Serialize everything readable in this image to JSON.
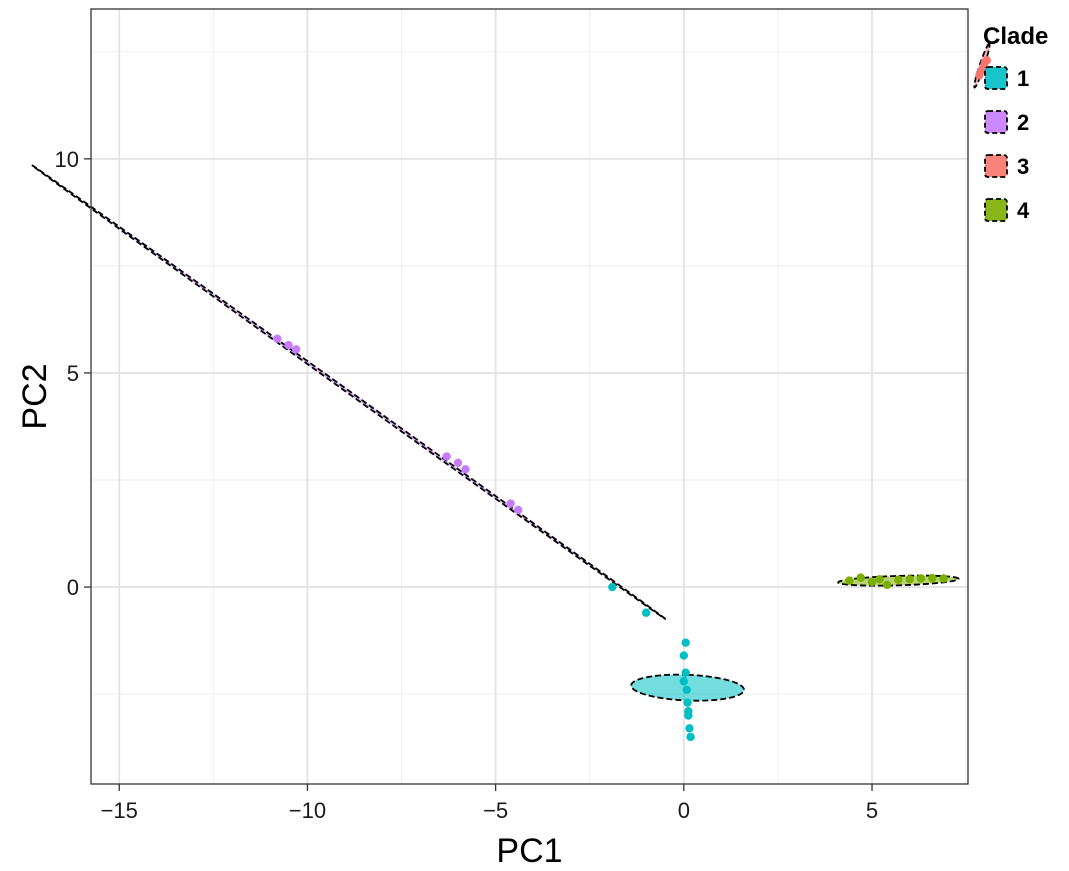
{
  "chart_data": {
    "type": "scatter",
    "title": "",
    "xlabel": "PC1",
    "ylabel": "PC2",
    "xlim": [
      -15.75,
      7.55
    ],
    "ylim": [
      -4.6,
      13.5
    ],
    "x_ticks": [
      -15,
      -10,
      -5,
      0,
      5
    ],
    "x_tick_labels": [
      "−15",
      "−10",
      "−5",
      "0",
      "5"
    ],
    "y_ticks": [
      0,
      5,
      10
    ],
    "y_tick_labels": [
      "0",
      "5",
      "10"
    ],
    "grid": true,
    "legend": {
      "title": "Clade",
      "placement": "right"
    },
    "series": [
      {
        "name": "1",
        "color": "#00BFC4",
        "points": [
          [
            -1.9,
            0.0
          ],
          [
            -1.0,
            -0.6
          ],
          [
            0.0,
            -1.6
          ],
          [
            0.05,
            -2.0
          ],
          [
            0.08,
            -2.4
          ],
          [
            0.1,
            -2.7
          ],
          [
            0.12,
            -3.0
          ],
          [
            0.15,
            -3.3
          ],
          [
            0.05,
            -1.3
          ],
          [
            0.0,
            -2.2
          ],
          [
            0.12,
            -2.9
          ],
          [
            0.18,
            -3.5
          ]
        ],
        "ellipse": {
          "cx": 0.1,
          "cy": -2.35,
          "rx": 0.3,
          "ry": 1.5,
          "angle": 88
        }
      },
      {
        "name": "2",
        "color": "#C77CFF",
        "points": [
          [
            -10.8,
            5.8
          ],
          [
            -10.5,
            5.65
          ],
          [
            -10.3,
            5.55
          ],
          [
            -6.3,
            3.05
          ],
          [
            -6.0,
            2.9
          ],
          [
            -5.8,
            2.75
          ],
          [
            -4.6,
            1.95
          ],
          [
            -4.4,
            1.8
          ]
        ],
        "ellipse": {
          "cx": -8.9,
          "cy": 4.55,
          "rx": 9.95,
          "ry": 0.03,
          "angle": -32.2
        }
      },
      {
        "name": "3",
        "color": "#F8766D",
        "points": [
          [
            7.85,
            11.95
          ],
          [
            7.9,
            12.05
          ],
          [
            7.95,
            12.15
          ],
          [
            8.0,
            12.25
          ],
          [
            8.05,
            12.3
          ]
        ],
        "ellipse": {
          "cx": 7.92,
          "cy": 12.18,
          "rx": 0.55,
          "ry": 0.06,
          "angle": 69
        }
      },
      {
        "name": "4",
        "color": "#7CAE00",
        "points": [
          [
            4.7,
            0.22
          ],
          [
            5.2,
            0.18
          ],
          [
            5.4,
            0.05
          ],
          [
            5.7,
            0.17
          ],
          [
            6.0,
            0.18
          ],
          [
            6.3,
            0.2
          ],
          [
            6.6,
            0.21
          ],
          [
            4.4,
            0.15
          ],
          [
            5.0,
            0.12
          ],
          [
            6.9,
            0.2
          ]
        ],
        "ellipse": {
          "cx": 5.7,
          "cy": 0.15,
          "rx": 1.6,
          "ry": 0.11,
          "angle": 1.5
        }
      }
    ]
  }
}
